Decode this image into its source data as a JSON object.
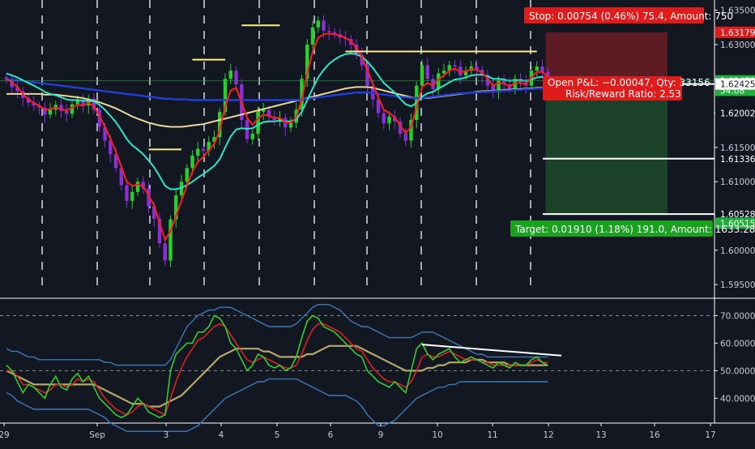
{
  "colors": {
    "background": "#131722",
    "grid_dash": "#ffffff",
    "candle_up": "#26d12b",
    "candle_down": "#8b2fd6",
    "ema_fast": "#ff1e1e",
    "ema_mid": "#2de6c8",
    "ma_slow": "#1f3fd8",
    "ma_slowest": "#e8d89a",
    "resistance": "#fff07a",
    "stop_zone": "#6b1c24",
    "target_zone": "#1d4a2a",
    "stop_label": "#e01b1b",
    "target_label": "#19a11f",
    "price_label": "#1fae3b",
    "rsi_line": "#33cc33",
    "rsi_signal": "#dd2222",
    "rsi_ma": "#b5a86a",
    "rsi_band": "#3d79b8",
    "divergence": "#ffffff",
    "axis_text": "#c8cbd3"
  },
  "price_axis": {
    "ticks": [
      "1.63500",
      "1.63000",
      "1.62500",
      "1.62000",
      "1.61500",
      "1.61000",
      "1.60500",
      "1.60000",
      "1.59500"
    ],
    "labels": [
      {
        "text": "1.63179",
        "style": "red"
      },
      {
        "text": "1.62472",
        "style": "green"
      },
      {
        "text": "54:08",
        "style": "green"
      },
      {
        "text": "1.62425",
        "style": "white"
      },
      {
        "text": "1.62002",
        "style": "plain"
      },
      {
        "text": "1.61336",
        "style": "plain"
      },
      {
        "text": "1.60528",
        "style": "plain"
      },
      {
        "text": "1.60515",
        "style": "green"
      }
    ]
  },
  "rsi_axis": {
    "ticks": [
      "70.00000",
      "60.00000",
      "50.00000",
      "40.00000"
    ]
  },
  "time_axis": {
    "labels": [
      "29",
      "Sep",
      "3",
      "4",
      "5",
      "6",
      "9",
      "10",
      "11",
      "12",
      "13",
      "16",
      "17"
    ]
  },
  "trade": {
    "stop_label": "Stop: 0.00754 (0.46%) 75.4, Amount: 750",
    "target_label": "Target: 0.01910 (1.18%) 191.0, Amount: 1633.28",
    "pnl_label": "Open P&L: −0.00047, Qty: 33156",
    "rr_label": "Risk/Reward Ratio: 2.53"
  },
  "chart_data": [
    {
      "type": "candlestick",
      "x_labels": [
        "29",
        "Sep",
        "3",
        "4",
        "5",
        "6",
        "9",
        "10",
        "11",
        "12"
      ],
      "ylim": [
        1.593,
        1.6365
      ],
      "close": [
        1.6249,
        1.6238,
        1.6232,
        1.6222,
        1.6215,
        1.6211,
        1.6208,
        1.6198,
        1.6205,
        1.6212,
        1.6203,
        1.6199,
        1.6213,
        1.6218,
        1.6211,
        1.6221,
        1.6205,
        1.618,
        1.616,
        1.614,
        1.612,
        1.6095,
        1.6072,
        1.6085,
        1.61,
        1.609,
        1.6064,
        1.6046,
        1.601,
        1.5985,
        1.6045,
        1.608,
        1.61,
        1.612,
        1.6138,
        1.6148,
        1.6145,
        1.6158,
        1.6165,
        1.6202,
        1.625,
        1.6262,
        1.6242,
        1.619,
        1.6162,
        1.617,
        1.6202,
        1.6205,
        1.6195,
        1.619,
        1.6193,
        1.6179,
        1.6186,
        1.6205,
        1.625,
        1.63,
        1.6325,
        1.6335,
        1.632,
        1.6318,
        1.6315,
        1.631,
        1.6308,
        1.63,
        1.6285,
        1.627,
        1.624,
        1.622,
        1.62,
        1.6185,
        1.6195,
        1.6188,
        1.617,
        1.616,
        1.619,
        1.624,
        1.627,
        1.625,
        1.6235,
        1.6258,
        1.6262,
        1.627,
        1.6268,
        1.6255,
        1.6262,
        1.6268,
        1.6263,
        1.6255,
        1.624,
        1.623,
        1.6248,
        1.6242,
        1.6235,
        1.625,
        1.6245,
        1.624,
        1.6262,
        1.6268,
        1.626,
        1.6247
      ],
      "ema_fast": [
        1.625,
        1.6245,
        1.6238,
        1.6228,
        1.622,
        1.6215,
        1.6211,
        1.6205,
        1.6206,
        1.6208,
        1.6206,
        1.6204,
        1.6208,
        1.6212,
        1.6211,
        1.6215,
        1.621,
        1.6196,
        1.618,
        1.6163,
        1.6144,
        1.6122,
        1.61,
        1.6094,
        1.6096,
        1.6093,
        1.608,
        1.6065,
        1.604,
        1.6015,
        1.6028,
        1.605,
        1.6072,
        1.6094,
        1.6114,
        1.6129,
        1.6136,
        1.6146,
        1.6155,
        1.6175,
        1.621,
        1.6233,
        1.6237,
        1.6216,
        1.6193,
        1.6183,
        1.6192,
        1.6198,
        1.6196,
        1.6193,
        1.6193,
        1.6187,
        1.6186,
        1.6194,
        1.622,
        1.6258,
        1.629,
        1.631,
        1.6315,
        1.6316,
        1.6315,
        1.6313,
        1.631,
        1.6305,
        1.6295,
        1.6282,
        1.6262,
        1.6243,
        1.6223,
        1.6205,
        1.62,
        1.6194,
        1.6182,
        1.6171,
        1.618,
        1.6209,
        1.6238,
        1.6244,
        1.624,
        1.6249,
        1.6255,
        1.6262,
        1.6265,
        1.626,
        1.6261,
        1.6264,
        1.6263,
        1.6259,
        1.625,
        1.624,
        1.6244,
        1.6243,
        1.6239,
        1.6244,
        1.6244,
        1.6242,
        1.6252,
        1.626,
        1.626,
        1.6253
      ],
      "ema_mid": [
        1.6258,
        1.6255,
        1.6252,
        1.6248,
        1.6244,
        1.624,
        1.6236,
        1.6231,
        1.6228,
        1.6226,
        1.6223,
        1.622,
        1.6219,
        1.6219,
        1.6218,
        1.6218,
        1.6217,
        1.6212,
        1.6205,
        1.6196,
        1.6187,
        1.6175,
        1.6162,
        1.6153,
        1.6147,
        1.614,
        1.6131,
        1.6121,
        1.6108,
        1.6094,
        1.6089,
        1.6089,
        1.6091,
        1.6095,
        1.61,
        1.6106,
        1.6111,
        1.6117,
        1.6123,
        1.6133,
        1.615,
        1.6166,
        1.6176,
        1.6178,
        1.6177,
        1.6178,
        1.6183,
        1.6187,
        1.6188,
        1.6188,
        1.6189,
        1.6188,
        1.6188,
        1.6191,
        1.6202,
        1.6219,
        1.6236,
        1.6252,
        1.6263,
        1.6272,
        1.6278,
        1.6283,
        1.6286,
        1.6287,
        1.6286,
        1.6282,
        1.6275,
        1.6266,
        1.6255,
        1.6244,
        1.6237,
        1.623,
        1.6221,
        1.6213,
        1.621,
        1.6215,
        1.6224,
        1.6229,
        1.6231,
        1.6236,
        1.624,
        1.6245,
        1.6249,
        1.625,
        1.6252,
        1.6255,
        1.6256,
        1.6256,
        1.6254,
        1.625,
        1.625,
        1.6249,
        1.6247,
        1.6248,
        1.6248,
        1.6247,
        1.6249,
        1.6252,
        1.6253,
        1.6252
      ],
      "ma_slow": [
        1.625,
        1.6249,
        1.6248,
        1.6247,
        1.6246,
        1.6245,
        1.6244,
        1.6243,
        1.6242,
        1.6241,
        1.624,
        1.6239,
        1.6238,
        1.6237,
        1.6236,
        1.6235,
        1.6234,
        1.6233,
        1.6232,
        1.6231,
        1.623,
        1.6229,
        1.6228,
        1.6227,
        1.6226,
        1.6225,
        1.6224,
        1.6223,
        1.6222,
        1.6221,
        1.6221,
        1.622,
        1.622,
        1.622,
        1.6219,
        1.6219,
        1.6219,
        1.6219,
        1.6219,
        1.6219,
        1.6219,
        1.6219,
        1.6219,
        1.6219,
        1.6219,
        1.6219,
        1.6219,
        1.6219,
        1.6219,
        1.6219,
        1.6219,
        1.6219,
        1.6219,
        1.6219,
        1.622,
        1.6221,
        1.6222,
        1.6223,
        1.6224,
        1.6225,
        1.6226,
        1.6227,
        1.6228,
        1.6229,
        1.623,
        1.623,
        1.623,
        1.6229,
        1.6228,
        1.6227,
        1.6226,
        1.6225,
        1.6224,
        1.6223,
        1.6222,
        1.6222,
        1.6222,
        1.6223,
        1.6224,
        1.6225,
        1.6226,
        1.6227,
        1.6228,
        1.6229,
        1.6229,
        1.623,
        1.623,
        1.6231,
        1.6231,
        1.6232,
        1.6232,
        1.6233,
        1.6233,
        1.6234,
        1.6234,
        1.6235,
        1.6235,
        1.6236,
        1.6236,
        1.6237
      ],
      "ma_slowest": [
        1.6228,
        1.6228,
        1.6228,
        1.6228,
        1.6228,
        1.6228,
        1.6228,
        1.6227,
        1.6227,
        1.6227,
        1.6226,
        1.6225,
        1.6224,
        1.6223,
        1.6222,
        1.622,
        1.6218,
        1.6216,
        1.6213,
        1.621,
        1.6207,
        1.6203,
        1.6199,
        1.6195,
        1.6192,
        1.6189,
        1.6186,
        1.6184,
        1.6182,
        1.6181,
        1.618,
        1.618,
        1.618,
        1.6181,
        1.6182,
        1.6183,
        1.6184,
        1.6186,
        1.6188,
        1.619,
        1.6192,
        1.6194,
        1.6196,
        1.6198,
        1.62,
        1.6202,
        1.6204,
        1.6206,
        1.6208,
        1.621,
        1.6212,
        1.6214,
        1.6216,
        1.6218,
        1.622,
        1.6222,
        1.6224,
        1.6226,
        1.6228,
        1.623,
        1.6232,
        1.6234,
        1.6236,
        1.6237,
        1.6238,
        1.6238,
        1.6238,
        1.6237,
        1.6235,
        1.6233,
        1.6231,
        1.6229,
        1.6227,
        1.6225,
        1.6223,
        1.6222,
        1.6222,
        1.6222,
        1.6223,
        1.6224,
        1.6225,
        1.6226,
        1.6227,
        1.6228,
        1.6229,
        1.623,
        1.6231,
        1.6232,
        1.6232,
        1.6233,
        1.6233,
        1.6234,
        1.6234,
        1.6235,
        1.6235,
        1.6236,
        1.6236,
        1.6237,
        1.6237,
        1.6238
      ],
      "resistance_levels": [
        {
          "start": 26,
          "end": 32,
          "y": 1.6147
        },
        {
          "start": 34,
          "end": 40,
          "y": 1.6278
        },
        {
          "start": 43,
          "end": 50,
          "y": 1.6328
        },
        {
          "start": 62,
          "end": 97,
          "y": 1.629
        }
      ],
      "position": {
        "start": 98,
        "end": 120,
        "entry": 1.62472,
        "stop": 1.63179,
        "target": 1.60515
      }
    },
    {
      "type": "line",
      "name": "",
      "ylim": [
        31,
        76
      ],
      "rsi": [
        52,
        50,
        46,
        42,
        45,
        44,
        42,
        40,
        45,
        48,
        44,
        43,
        47,
        49,
        46,
        48,
        44,
        40,
        38,
        36,
        34,
        33,
        34,
        37,
        40,
        38,
        35,
        34,
        33,
        34,
        50,
        56,
        58,
        60,
        60,
        64,
        64,
        66,
        70,
        69,
        66,
        60,
        58,
        54,
        50,
        52,
        56,
        55,
        52,
        51,
        52,
        50,
        51,
        55,
        62,
        68,
        70,
        69,
        66,
        65,
        64,
        62,
        60,
        58,
        56,
        55,
        50,
        48,
        46,
        45,
        44,
        46,
        44,
        42,
        50,
        58,
        60,
        56,
        54,
        56,
        57,
        58,
        55,
        53,
        54,
        55,
        54,
        53,
        52,
        51,
        53,
        52,
        51,
        53,
        52,
        52,
        54,
        55,
        53,
        52
      ],
      "rsi_signal": [
        50,
        50,
        48,
        45,
        45,
        44,
        43,
        42,
        43,
        45,
        45,
        44,
        45,
        47,
        46,
        47,
        46,
        43,
        40,
        38,
        36,
        35,
        34,
        35,
        37,
        38,
        37,
        36,
        35,
        34,
        40,
        46,
        51,
        55,
        58,
        61,
        62,
        64,
        66,
        67,
        66,
        63,
        60,
        57,
        54,
        53,
        54,
        55,
        54,
        53,
        52,
        51,
        51,
        52,
        56,
        61,
        65,
        67,
        67,
        66,
        65,
        64,
        62,
        60,
        58,
        57,
        54,
        51,
        49,
        47,
        46,
        46,
        45,
        44,
        46,
        50,
        55,
        56,
        55,
        55,
        56,
        57,
        56,
        55,
        54,
        54,
        54,
        53,
        53,
        52,
        52,
        52,
        52,
        52,
        52,
        52,
        53,
        54,
        53,
        53
      ],
      "rsi_ma": [
        50,
        49,
        48,
        47,
        46,
        45,
        45,
        45,
        45,
        45,
        45,
        45,
        45,
        45,
        45,
        45,
        45,
        44,
        43,
        42,
        41,
        40,
        39,
        38,
        38,
        38,
        37,
        37,
        37,
        38,
        39,
        40,
        41,
        43,
        45,
        47,
        49,
        51,
        53,
        55,
        56,
        57,
        58,
        58,
        58,
        58,
        58,
        57,
        57,
        56,
        55,
        55,
        55,
        55,
        55,
        56,
        56,
        57,
        58,
        59,
        59,
        59,
        59,
        59,
        59,
        58,
        57,
        56,
        55,
        54,
        53,
        52,
        51,
        50,
        50,
        50,
        50,
        51,
        51,
        52,
        52,
        53,
        53,
        53,
        53,
        54,
        54,
        54,
        53,
        53,
        53,
        53,
        52,
        52,
        52,
        52,
        52,
        52,
        52,
        52
      ],
      "band_upper": [
        58,
        57,
        57,
        56,
        55,
        55,
        54,
        54,
        54,
        54,
        54,
        54,
        54,
        54,
        54,
        54,
        54,
        54,
        53,
        53,
        52,
        52,
        52,
        52,
        52,
        52,
        52,
        52,
        52,
        52,
        54,
        58,
        62,
        66,
        68,
        70,
        71,
        72,
        72,
        73,
        73,
        73,
        72,
        71,
        70,
        69,
        68,
        67,
        66,
        66,
        66,
        66,
        66,
        67,
        69,
        71,
        73,
        74,
        74,
        74,
        73,
        72,
        70,
        68,
        67,
        66,
        66,
        65,
        64,
        63,
        62,
        62,
        62,
        62,
        62,
        63,
        64,
        64,
        64,
        63,
        62,
        61,
        60,
        59,
        58,
        57,
        56,
        56,
        55,
        55,
        55,
        55,
        55,
        55,
        55,
        55,
        55,
        55,
        55,
        55
      ],
      "band_lower": [
        42,
        41,
        39,
        38,
        37,
        36,
        36,
        36,
        36,
        36,
        36,
        36,
        36,
        36,
        36,
        36,
        35,
        34,
        33,
        31,
        30,
        29,
        28,
        28,
        28,
        28,
        28,
        28,
        28,
        28,
        28,
        28,
        28,
        28,
        29,
        30,
        32,
        34,
        36,
        38,
        40,
        41,
        42,
        43,
        44,
        45,
        46,
        46,
        47,
        47,
        47,
        47,
        47,
        47,
        46,
        45,
        44,
        43,
        42,
        41,
        41,
        41,
        41,
        40,
        39,
        37,
        34,
        32,
        30,
        30,
        31,
        32,
        34,
        36,
        38,
        40,
        41,
        42,
        43,
        44,
        44,
        45,
        45,
        46,
        46,
        46,
        46,
        46,
        46,
        46,
        46,
        46,
        46,
        46,
        46,
        46,
        46,
        46,
        46,
        46
      ],
      "divergence": {
        "start": 76,
        "end": 100,
        "y_start": 59.5,
        "y_end": 55.5
      },
      "midline": 50,
      "dashed_levels": [
        70,
        50
      ]
    }
  ]
}
